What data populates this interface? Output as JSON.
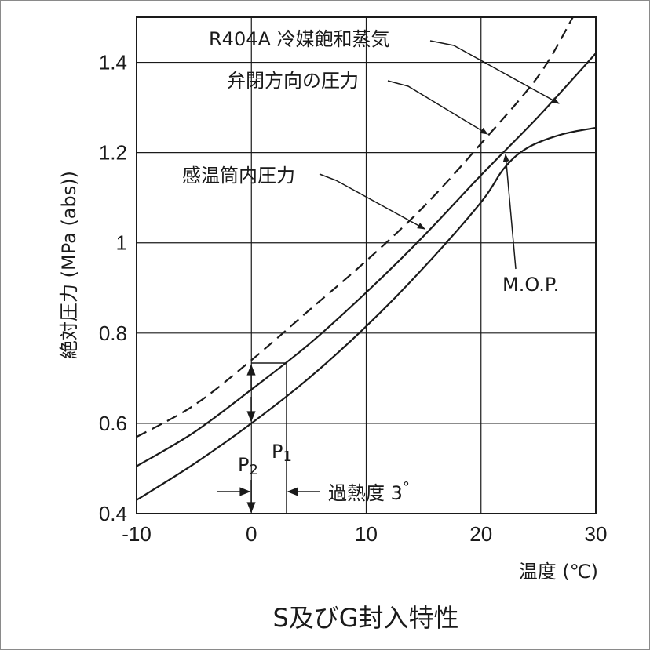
{
  "chart_data": {
    "type": "line",
    "title": "S及びG封入特性",
    "xlabel": "温度 (℃)",
    "ylabel": "絶対圧力 (MPa (abs))",
    "xlim": [
      -10,
      30
    ],
    "ylim": [
      0.4,
      1.5
    ],
    "x_ticks": [
      "-10",
      "0",
      "10",
      "20",
      "30"
    ],
    "y_ticks": [
      "0.4",
      "0.6",
      "0.8",
      "1",
      "1.2",
      "1.4"
    ],
    "y_tick_values": [
      0.4,
      0.6,
      0.8,
      1.0,
      1.2,
      1.4
    ],
    "x_tick_values": [
      -10,
      0,
      10,
      20,
      30
    ],
    "grid": true,
    "series": [
      {
        "name": "R404A冷媒飽和蒸気",
        "style": "dashed",
        "x": [
          -10,
          -5,
          0,
          5,
          10,
          15,
          20,
          25,
          28
        ],
        "y": [
          0.57,
          0.64,
          0.74,
          0.85,
          0.96,
          1.08,
          1.22,
          1.37,
          1.5
        ]
      },
      {
        "name": "弁閉方向の圧力",
        "style": "solid",
        "x": [
          -10,
          -5,
          0,
          5,
          10,
          15,
          20,
          25,
          30
        ],
        "y": [
          0.505,
          0.58,
          0.675,
          0.775,
          0.89,
          1.015,
          1.15,
          1.28,
          1.42
        ]
      },
      {
        "name": "感温筒内圧力",
        "style": "solid",
        "x": [
          -10,
          -5,
          0,
          5,
          10,
          15,
          20,
          22,
          24,
          27,
          30
        ],
        "y": [
          0.43,
          0.51,
          0.6,
          0.7,
          0.815,
          0.945,
          1.09,
          1.165,
          1.21,
          1.24,
          1.255
        ]
      }
    ],
    "annotations": {
      "refrigerant": "R404A 冷媒飽和蒸気",
      "valve_close": "弁閉方向の圧力",
      "bulb": "感温筒内圧力",
      "mop": "M.O.P.",
      "p1": "P",
      "p1_sub": "1",
      "p2": "P",
      "p2_sub": "2",
      "superheat": "過熱度 3",
      "degree": "°"
    }
  }
}
